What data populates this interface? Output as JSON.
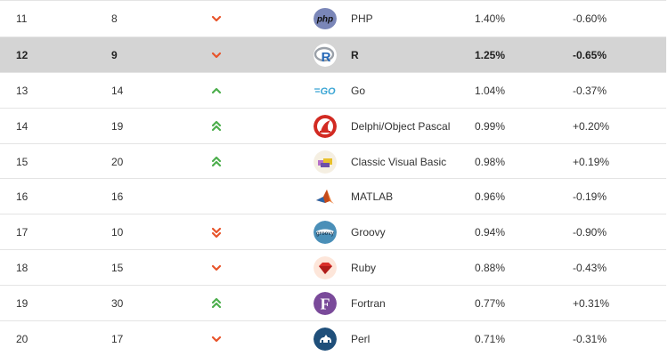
{
  "colors": {
    "up": "#4cae4c",
    "down": "#e8542a",
    "highlight": "#d4d4d4",
    "border": "#e4e4e4"
  },
  "rows": [
    {
      "rank": "11",
      "prev": "8",
      "trend": "down",
      "icon": "php-logo-icon",
      "name": "PHP",
      "rating": "1.40%",
      "change": "-0.60%"
    },
    {
      "rank": "12",
      "prev": "9",
      "trend": "down",
      "icon": "r-logo-icon",
      "name": "R",
      "rating": "1.25%",
      "change": "-0.65%",
      "highlight": true
    },
    {
      "rank": "13",
      "prev": "14",
      "trend": "up",
      "icon": "go-logo-icon",
      "name": "Go",
      "rating": "1.04%",
      "change": "-0.37%"
    },
    {
      "rank": "14",
      "prev": "19",
      "trend": "double-up",
      "icon": "delphi-logo-icon",
      "name": "Delphi/Object Pascal",
      "rating": "0.99%",
      "change": "+0.20%"
    },
    {
      "rank": "15",
      "prev": "20",
      "trend": "double-up",
      "icon": "vb-logo-icon",
      "name": "Classic Visual Basic",
      "rating": "0.98%",
      "change": "+0.19%"
    },
    {
      "rank": "16",
      "prev": "16",
      "trend": "none",
      "icon": "matlab-logo-icon",
      "name": "MATLAB",
      "rating": "0.96%",
      "change": "-0.19%"
    },
    {
      "rank": "17",
      "prev": "10",
      "trend": "double-down",
      "icon": "groovy-logo-icon",
      "name": "Groovy",
      "rating": "0.94%",
      "change": "-0.90%"
    },
    {
      "rank": "18",
      "prev": "15",
      "trend": "down",
      "icon": "ruby-logo-icon",
      "name": "Ruby",
      "rating": "0.88%",
      "change": "-0.43%"
    },
    {
      "rank": "19",
      "prev": "30",
      "trend": "double-up",
      "icon": "fortran-logo-icon",
      "name": "Fortran",
      "rating": "0.77%",
      "change": "+0.31%"
    },
    {
      "rank": "20",
      "prev": "17",
      "trend": "down",
      "icon": "perl-logo-icon",
      "name": "Perl",
      "rating": "0.71%",
      "change": "-0.31%"
    }
  ]
}
